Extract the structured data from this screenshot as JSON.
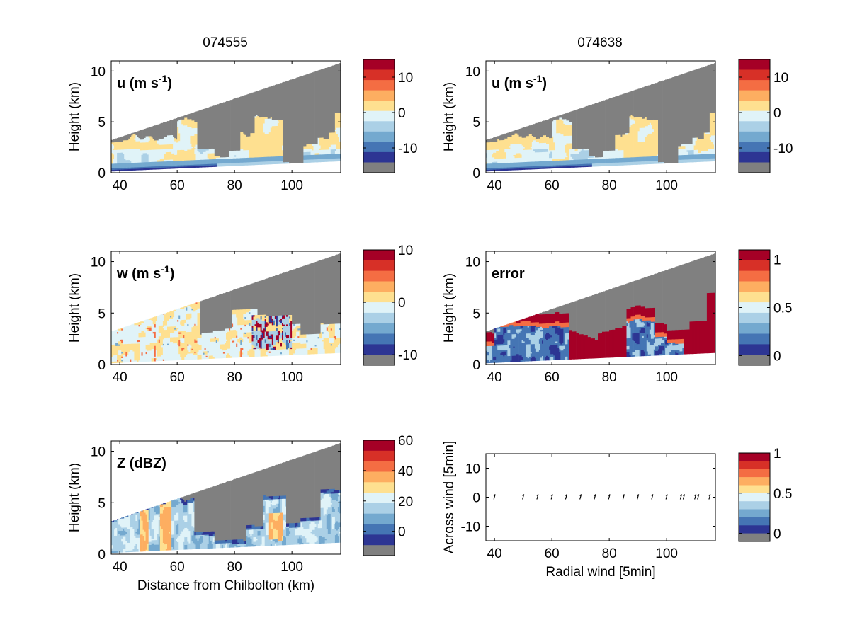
{
  "columns": [
    "074555",
    "074638"
  ],
  "xticks": [
    40,
    60,
    80,
    100
  ],
  "palette": [
    "#2d3593",
    "#4575b4",
    "#74a9cf",
    "#abd0e6",
    "#e0f3f8",
    "#fee090",
    "#fdae61",
    "#f46d43",
    "#d73027",
    "#a50026"
  ],
  "grey": "#808080",
  "arrow_color": "#000000",
  "chart_data": [
    {
      "type": "heatmap",
      "panel": "u_left",
      "label": "u (m s⁻¹)",
      "ylabel": "Height (km)",
      "xlabel": "",
      "xlim": [
        37,
        117
      ],
      "ylim": [
        0,
        11
      ],
      "xticks": [
        40,
        60,
        80,
        100
      ],
      "yticks": [
        0,
        5,
        10
      ],
      "colorbar": {
        "range": [
          -17,
          15
        ],
        "ticks": [
          10,
          0,
          -10
        ],
        "tick_values": [
          10,
          0,
          -10
        ]
      }
    },
    {
      "type": "heatmap",
      "panel": "u_right",
      "label": "u (m s⁻¹)",
      "ylabel": "Height (km)",
      "xlabel": "",
      "xlim": [
        37,
        117
      ],
      "ylim": [
        0,
        11
      ],
      "xticks": [
        40,
        60,
        80,
        100
      ],
      "yticks": [
        0,
        5,
        10
      ],
      "colorbar": {
        "range": [
          -17,
          15
        ],
        "ticks": [
          10,
          0,
          -10
        ],
        "tick_values": [
          10,
          0,
          -10
        ]
      }
    },
    {
      "type": "heatmap",
      "panel": "w_left",
      "label": "w (m s⁻¹)",
      "ylabel": "Height (km)",
      "xlabel": "",
      "xlim": [
        37,
        117
      ],
      "ylim": [
        0,
        11
      ],
      "xticks": [
        40,
        60,
        80,
        100
      ],
      "yticks": [
        0,
        5,
        10
      ],
      "colorbar": {
        "range": [
          -12,
          10
        ],
        "ticks": [
          10,
          0,
          -10
        ],
        "tick_values": [
          10,
          0,
          -10
        ]
      }
    },
    {
      "type": "heatmap",
      "panel": "error_right",
      "label": "error",
      "ylabel": "Height (km)",
      "xlabel": "",
      "xlim": [
        37,
        117
      ],
      "ylim": [
        0,
        11
      ],
      "xticks": [
        40,
        60,
        80,
        100
      ],
      "yticks": [
        0,
        5,
        10
      ],
      "colorbar": {
        "range": [
          -0.1,
          1.1
        ],
        "ticks": [
          1,
          0.5,
          0
        ],
        "tick_values": [
          1,
          0.5,
          0
        ]
      }
    },
    {
      "type": "heatmap",
      "panel": "z_left",
      "label": "Z (dBZ)",
      "ylabel": "Height (km)",
      "xlabel": "Distance from Chilbolton (km)",
      "xlim": [
        37,
        117
      ],
      "ylim": [
        0,
        11
      ],
      "xticks": [
        40,
        60,
        80,
        100
      ],
      "yticks": [
        0,
        5,
        10
      ],
      "colorbar": {
        "range": [
          -16,
          60
        ],
        "ticks": [
          60,
          40,
          20,
          0
        ],
        "tick_values": [
          60,
          40,
          20,
          0
        ]
      }
    },
    {
      "type": "scatter",
      "panel": "quiver_right",
      "label": "",
      "ylabel": "Across wind [5min]",
      "xlabel": "Radial wind [5min]",
      "xlim": [
        37,
        117
      ],
      "ylim": [
        -15,
        15
      ],
      "xticks": [
        40,
        60,
        80,
        100
      ],
      "yticks": [
        10,
        0,
        -10
      ],
      "x": [
        40,
        50,
        55,
        60,
        65,
        70,
        75,
        80,
        85,
        90,
        95,
        100,
        105,
        106,
        110,
        111,
        115
      ],
      "y": [
        0,
        0,
        0,
        0,
        0,
        0,
        0,
        0,
        0,
        0,
        0,
        0,
        0,
        0,
        0,
        0,
        0
      ],
      "colorbar": {
        "range": [
          -0.1,
          1.0
        ],
        "ticks": [
          1,
          0.5,
          0
        ],
        "tick_values": [
          1,
          0.5,
          0
        ]
      }
    }
  ]
}
